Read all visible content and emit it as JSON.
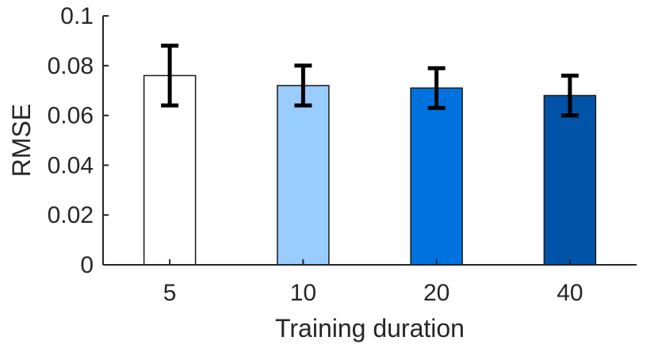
{
  "chart_data": {
    "type": "bar",
    "categories": [
      "5",
      "10",
      "20",
      "40"
    ],
    "values": [
      0.076,
      0.072,
      0.071,
      0.068
    ],
    "error_low": [
      0.064,
      0.064,
      0.063,
      0.06
    ],
    "error_high": [
      0.088,
      0.08,
      0.079,
      0.076
    ],
    "bar_colors": [
      "#ffffff",
      "#99ccff",
      "#0072e0",
      "#0053a6"
    ],
    "xlabel": "Training duration",
    "ylabel": "RMSE",
    "ylim": [
      0,
      0.1
    ],
    "yticks": [
      "0",
      "0.02",
      "0.04",
      "0.06",
      "0.08",
      "0.1"
    ],
    "ytick_values": [
      0,
      0.02,
      0.04,
      0.06,
      0.08,
      0.1
    ],
    "grid": false
  }
}
